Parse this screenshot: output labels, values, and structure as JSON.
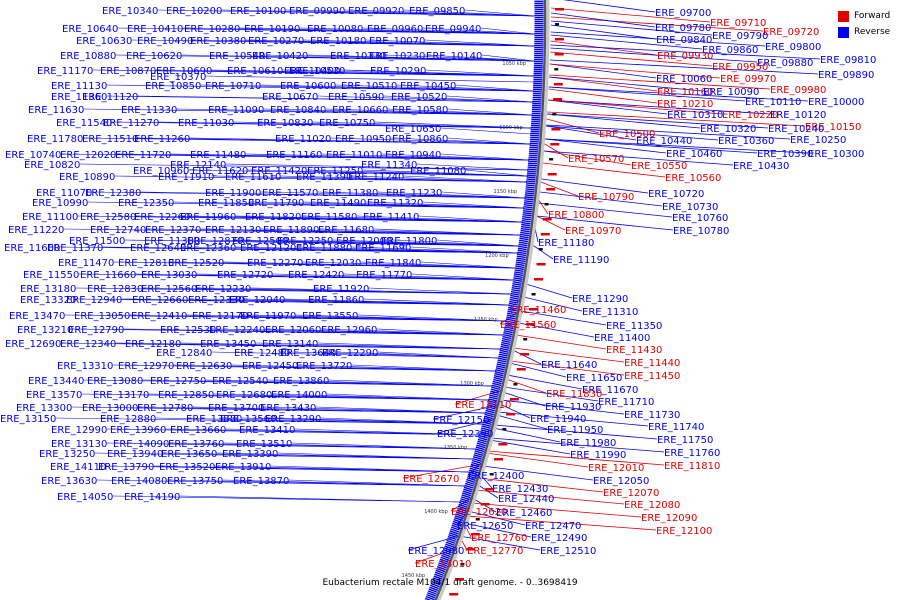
{
  "legend": {
    "forward_label": "Forward",
    "reverse_label": "Reverse",
    "forward_color": "#e00000",
    "reverse_color": "#0000ee"
  },
  "caption": "Eubacterium rectale M104/1 draft genome. - 0..3698419",
  "axis_ticks": [
    "1050 kbp",
    "1100 kbp",
    "1150 kbp",
    "1200 kbp",
    "1250 kbp",
    "1300 kbp",
    "1350 kbp",
    "1400 kbp",
    "1450 kbp"
  ],
  "outer_labels": [
    {
      "t": "ERE_09700",
      "s": "r"
    },
    {
      "t": "ERE_09710",
      "s": "f"
    },
    {
      "t": "ERE_09720",
      "s": "f"
    },
    {
      "t": "ERE_09780",
      "s": "r"
    },
    {
      "t": "ERE_09790",
      "s": "r"
    },
    {
      "t": "ERE_09840",
      "s": "r"
    },
    {
      "t": "ERE_09800",
      "s": "r"
    },
    {
      "t": "ERE_09860",
      "s": "r"
    },
    {
      "t": "ERE_09930",
      "s": "f"
    },
    {
      "t": "ERE_09810",
      "s": "r"
    },
    {
      "t": "ERE_09880",
      "s": "r"
    },
    {
      "t": "ERE_09950",
      "s": "f"
    },
    {
      "t": "ERE_09890",
      "s": "r"
    },
    {
      "t": "ERE_10060",
      "s": "r"
    },
    {
      "t": "ERE_09970",
      "s": "f"
    },
    {
      "t": "ERE_09980",
      "s": "f"
    },
    {
      "t": "ERE_10160",
      "s": "f"
    },
    {
      "t": "ERE_10090",
      "s": "r"
    },
    {
      "t": "ERE_10000",
      "s": "r"
    },
    {
      "t": "ERE_10210",
      "s": "f"
    },
    {
      "t": "ERE_10110",
      "s": "r"
    },
    {
      "t": "ERE_10120",
      "s": "r"
    },
    {
      "t": "ERE_10310",
      "s": "r"
    },
    {
      "t": "ERE_10220",
      "s": "f"
    },
    {
      "t": "ERE_10150",
      "s": "f"
    },
    {
      "t": "ERE_10320",
      "s": "r"
    },
    {
      "t": "ERE_10240",
      "s": "r"
    },
    {
      "t": "ERE_10500",
      "s": "f"
    },
    {
      "t": "ERE_10440",
      "s": "r"
    },
    {
      "t": "ERE_10360",
      "s": "r"
    },
    {
      "t": "ERE_10250",
      "s": "r"
    },
    {
      "t": "ERE_10460",
      "s": "r"
    },
    {
      "t": "ERE_10390",
      "s": "r"
    },
    {
      "t": "ERE_10300",
      "s": "r"
    },
    {
      "t": "ERE_10570",
      "s": "f"
    },
    {
      "t": "ERE_10550",
      "s": "f"
    },
    {
      "t": "ERE_10430",
      "s": "r"
    },
    {
      "t": "ERE_10560",
      "s": "f"
    },
    {
      "t": "ERE_10720",
      "s": "r"
    },
    {
      "t": "ERE_10790",
      "s": "f"
    },
    {
      "t": "ERE_10730",
      "s": "r"
    },
    {
      "t": "ERE_10800",
      "s": "f"
    },
    {
      "t": "ERE_10760",
      "s": "r"
    },
    {
      "t": "ERE_10970",
      "s": "f"
    },
    {
      "t": "ERE_10780",
      "s": "r"
    },
    {
      "t": "ERE_11180",
      "s": "r"
    },
    {
      "t": "ERE_11190",
      "s": "r"
    },
    {
      "t": "ERE_11290",
      "s": "r"
    },
    {
      "t": "ERE_11460",
      "s": "f"
    },
    {
      "t": "ERE_11310",
      "s": "r"
    },
    {
      "t": "ERE_11560",
      "s": "f"
    },
    {
      "t": "ERE_11350",
      "s": "r"
    },
    {
      "t": "ERE_11400",
      "s": "r"
    },
    {
      "t": "ERE_11430",
      "s": "f"
    },
    {
      "t": "ERE_11440",
      "s": "f"
    },
    {
      "t": "ERE_11640",
      "s": "r"
    },
    {
      "t": "ERE_11450",
      "s": "f"
    },
    {
      "t": "ERE_11650",
      "s": "r"
    },
    {
      "t": "ERE_11670",
      "s": "r"
    },
    {
      "t": "ERE_11830",
      "s": "f"
    },
    {
      "t": "ERE_11710",
      "s": "r"
    },
    {
      "t": "ERE_12110",
      "s": "f"
    },
    {
      "t": "ERE_11930",
      "s": "r"
    },
    {
      "t": "ERE_11730",
      "s": "r"
    },
    {
      "t": "ERE_11940",
      "s": "r"
    },
    {
      "t": "ERE_12150",
      "s": "r"
    },
    {
      "t": "ERE_11740",
      "s": "r"
    },
    {
      "t": "ERE_12390",
      "s": "r"
    },
    {
      "t": "ERE_11950",
      "s": "r"
    },
    {
      "t": "ERE_11750",
      "s": "r"
    },
    {
      "t": "ERE_11980",
      "s": "r"
    },
    {
      "t": "ERE_11760",
      "s": "r"
    },
    {
      "t": "ERE_11990",
      "s": "r"
    },
    {
      "t": "ERE_11810",
      "s": "f"
    },
    {
      "t": "ERE_12010",
      "s": "f"
    },
    {
      "t": "ERE_12400",
      "s": "r"
    },
    {
      "t": "ERE_12670",
      "s": "f"
    },
    {
      "t": "ERE_12050",
      "s": "r"
    },
    {
      "t": "ERE_12430",
      "s": "r"
    },
    {
      "t": "ERE_12070",
      "s": "f"
    },
    {
      "t": "ERE_12440",
      "s": "r"
    },
    {
      "t": "ERE_12080",
      "s": "f"
    },
    {
      "t": "ERE_12620",
      "s": "f"
    },
    {
      "t": "ERE_12460",
      "s": "r"
    },
    {
      "t": "ERE_12090",
      "s": "f"
    },
    {
      "t": "ERE_12650",
      "s": "r"
    },
    {
      "t": "ERE_12470",
      "s": "r"
    },
    {
      "t": "ERE_12100",
      "s": "f"
    },
    {
      "t": "ERE_12760",
      "s": "f"
    },
    {
      "t": "ERE_12490",
      "s": "r"
    },
    {
      "t": "ERE_12980",
      "s": "r"
    },
    {
      "t": "ERE_12770",
      "s": "f"
    },
    {
      "t": "ERE_12510",
      "s": "r"
    },
    {
      "t": "ERE_13010",
      "s": "f"
    }
  ],
  "inner_labels": [
    "ERE_10340",
    "ERE_10200",
    "ERE_10100",
    "ERE_09990",
    "ERE_09920",
    "ERE_09850",
    "ERE_10640",
    "ERE_10410",
    "ERE_10280",
    "ERE_10190",
    "ERE_10080",
    "ERE_09960",
    "ERE_09940",
    "ERE_10630",
    "ERE_10490",
    "ERE_10380",
    "ERE_10270",
    "ERE_10180",
    "ERE_10070",
    "ERE_10880",
    "ERE_10620",
    "ERE_10540",
    "ERE_10420",
    "ERE_10330",
    "ERE_10230",
    "ERE_10140",
    "ERE_10870",
    "ERE_10690",
    "ERE_10400",
    "ERE_10290",
    "ERE_11170",
    "ERE_10610",
    "ERE_10530",
    "ERE_10370",
    "ERE_11130",
    "ERE_10850",
    "ERE_10710",
    "ERE_10600",
    "ERE_10510",
    "ERE_10450",
    "ERE_11360",
    "ERE_11120",
    "ERE_10670",
    "ERE_10590",
    "ERE_10520",
    "ERE_11630",
    "ERE_11330",
    "ERE_11090",
    "ERE_10840",
    "ERE_10660",
    "ERE_10580",
    "ERE_11540",
    "ERE_11270",
    "ERE_11030",
    "ERE_10830",
    "ERE_10750",
    "ERE_10650",
    "ERE_11780",
    "ERE_11510",
    "ERE_11260",
    "ERE_11020",
    "ERE_10950",
    "ERE_10860",
    "ERE_10740",
    "ERE_12020",
    "ERE_11720",
    "ERE_11480",
    "ERE_11160",
    "ERE_11010",
    "ERE_10940",
    "ERE_10820",
    "ERE_12140",
    "ERE_11340",
    "ERE_10960",
    "ERE_11620",
    "ERE_11420",
    "ERE_11250",
    "ERE_11080",
    "ERE_10890",
    "ERE_11910",
    "ERE_11610",
    "ERE_11390",
    "ERE_11240",
    "ERE_11070",
    "ERE_12380",
    "ERE_11900",
    "ERE_11570",
    "ERE_11380",
    "ERE_11230",
    "ERE_10990",
    "ERE_12350",
    "ERE_11850",
    "ERE_11790",
    "ERE_11490",
    "ERE_11320",
    "ERE_11100",
    "ERE_12580",
    "ERE_12260",
    "ERE_11960",
    "ERE_11820",
    "ERE_11580",
    "ERE_11410",
    "ERE_11220",
    "ERE_12740",
    "ERE_12370",
    "ERE_12130",
    "ERE_11890",
    "ERE_11680",
    "ERE_11500",
    "ERE_11300",
    "ERE_12870",
    "ERE_12500",
    "ERE_12250",
    "ERE_12000",
    "ERE_11800",
    "ERE_11600",
    "ERE_11370",
    "ERE_12640",
    "ERE_12360",
    "ERE_12120",
    "ERE_11880",
    "ERE_11690",
    "ERE_11470",
    "ERE_12810",
    "ERE_12520",
    "ERE_12270",
    "ERE_12030",
    "ERE_11840",
    "ERE_11550",
    "ERE_11660",
    "ERE_13030",
    "ERE_12720",
    "ERE_12420",
    "ERE_11770",
    "ERE_13180",
    "ERE_12830",
    "ERE_12560",
    "ERE_12230",
    "ERE_11920",
    "ERE_13320",
    "ERE_12940",
    "ERE_12660",
    "ERE_12330",
    "ERE_12040",
    "ERE_11860",
    "ERE_13470",
    "ERE_13050",
    "ERE_12410",
    "ERE_12170",
    "ERE_11970",
    "ERE_13550",
    "ERE_13210",
    "ERE_12790",
    "ERE_12530",
    "ERE_12240",
    "ERE_12060",
    "ERE_12960",
    "ERE_12690",
    "ERE_12340",
    "ERE_12180",
    "ERE_13450",
    "ERE_13140",
    "ERE_12840",
    "ERE_12480",
    "ERE_12290",
    "ERE_13640",
    "ERE_13310",
    "ERE_12970",
    "ERE_12630",
    "ERE_12450",
    "ERE_13720",
    "ERE_13440",
    "ERE_13080",
    "ERE_12750",
    "ERE_12540",
    "ERE_13860",
    "ERE_13570",
    "ERE_13170",
    "ERE_12850",
    "ERE_12680",
    "ERE_14000",
    "ERE_13300",
    "ERE_13000",
    "ERE_12780",
    "ERE_13700",
    "ERE_13430",
    "ERE_13150",
    "ERE_12880",
    "ERE_13830",
    "ERE_13560",
    "ERE_13290",
    "ERE_12990",
    "ERE_13960",
    "ERE_13660",
    "ERE_13410",
    "ERE_13130",
    "ERE_14090",
    "ERE_13760",
    "ERE_13510",
    "ERE_13250",
    "ERE_13940",
    "ERE_13650",
    "ERE_13390",
    "ERE_14110",
    "ERE_13790",
    "ERE_13520",
    "ERE_13910",
    "ERE_13630",
    "ERE_14080",
    "ERE_13750",
    "ERE_13870",
    "ERE_14050",
    "ERE_14190"
  ]
}
